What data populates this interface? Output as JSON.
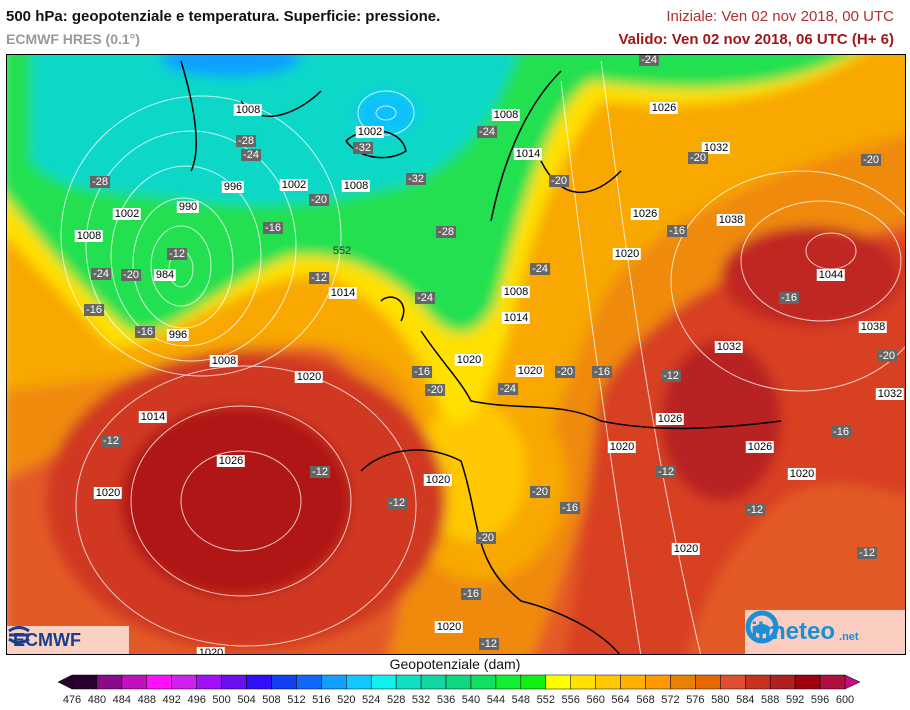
{
  "header": {
    "title": "500 hPa: geopotenziale e temperatura. Superficie: pressione.",
    "model": "ECMWF HRES (0.1°)",
    "initial": "Iniziale: Ven 02 nov 2018, 00 UTC",
    "valid": "Valido: Ven 02 nov 2018, 06 UTC (H+ 6)"
  },
  "map": {
    "pressure_labels": [
      "1008",
      "1002",
      "996",
      "1002",
      "1008",
      "990",
      "1002",
      "1008",
      "984",
      "1014",
      "996",
      "1008",
      "1020",
      "1014",
      "1026",
      "1020",
      "1020",
      "1020",
      "1020",
      "1008",
      "1026",
      "1014",
      "1032",
      "1026",
      "1038",
      "1020",
      "1044",
      "1008",
      "1014",
      "1038",
      "1032",
      "1020",
      "1020",
      "1032",
      "1026",
      "1020",
      "1026",
      "1020",
      "1020"
    ],
    "contour_labels": [
      "552"
    ],
    "temperature_labels": [
      "-28",
      "-32",
      "-24",
      "-28",
      "-32",
      "-20",
      "-16",
      "-28",
      "-12",
      "-24",
      "-20",
      "-12",
      "-16",
      "-16",
      "-24",
      "-24",
      "-24",
      "-20",
      "-20",
      "-20",
      "-16",
      "-24",
      "-16",
      "-20",
      "-16",
      "-20",
      "-24",
      "-20",
      "-16",
      "-12",
      "-12",
      "-12",
      "-12",
      "-12",
      "-16",
      "-12",
      "-12",
      "-20",
      "-16",
      "-20",
      "-16",
      "-12"
    ]
  },
  "logos": {
    "left": "ECMWF",
    "right_name": "ilmeteo",
    "right_suffix": ".net"
  },
  "colorbar": {
    "title": "Geopotenziale (dam)",
    "ticks": [
      476,
      480,
      484,
      488,
      492,
      496,
      500,
      504,
      508,
      512,
      516,
      520,
      524,
      528,
      532,
      536,
      540,
      544,
      548,
      552,
      556,
      560,
      564,
      568,
      572,
      576,
      580,
      584,
      588,
      592,
      596,
      600
    ],
    "colors": [
      "#2a0030",
      "#8a0a8a",
      "#c010c0",
      "#ff10ff",
      "#d020f0",
      "#a010f8",
      "#6a10f0",
      "#3010f8",
      "#1040f0",
      "#1068ff",
      "#10a0ff",
      "#10c8ff",
      "#10f0f0",
      "#10e0c0",
      "#10d8a0",
      "#10d880",
      "#10e060",
      "#10f030",
      "#10f010",
      "#ffff00",
      "#ffe000",
      "#ffc800",
      "#ffb000",
      "#ff9800",
      "#e88000",
      "#e86800",
      "#e05030",
      "#c83020",
      "#b02020",
      "#a00010",
      "#b01040"
    ],
    "under_color": "#2a0030",
    "over_color": "#c01080"
  }
}
